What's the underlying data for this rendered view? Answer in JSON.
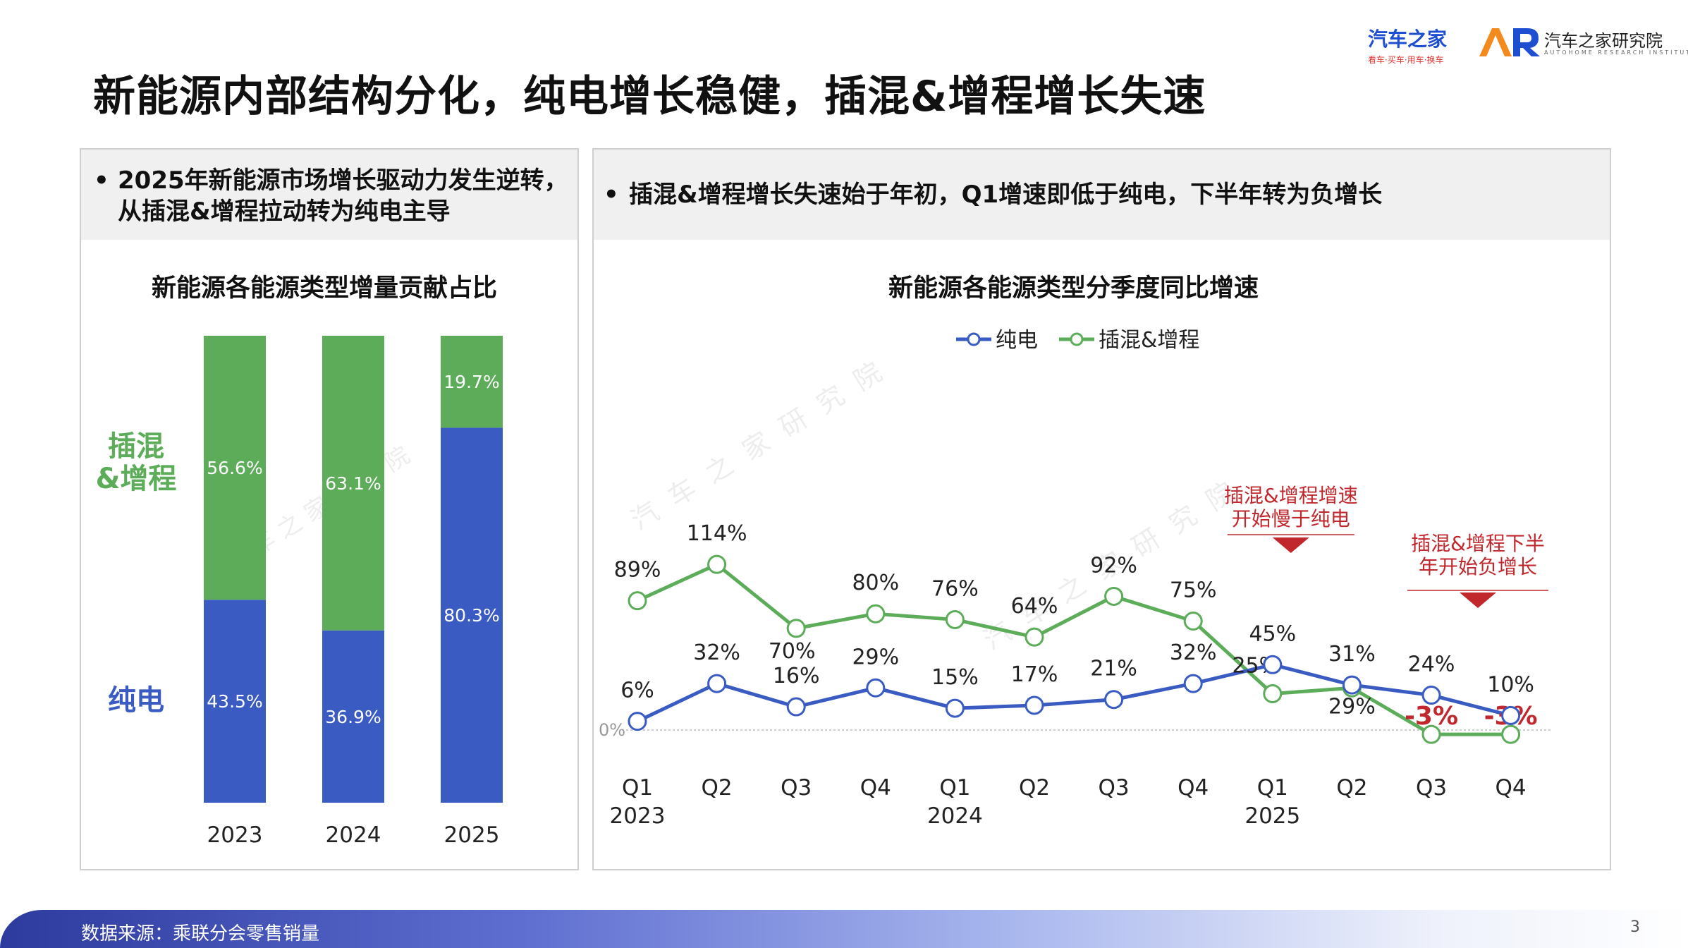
{
  "title": "新能源内部结构分化，纯电增长稳健，插混&增程增长失速",
  "logos": {
    "autohome": "汽车之家",
    "autohome_sub": "看车·买车·用车·换车",
    "institute": "汽车之家研究院",
    "institute_sub": "AUTOHOME RESEARCH INSTITUTE"
  },
  "watermark": "汽 车 之 家 研 究 院",
  "left_panel": {
    "bullet": "•",
    "bullet_line1": "2025年新能源市场增长驱动力发生逆转，",
    "bullet_line2": "从插混&增程拉动转为纯电主导"
  },
  "right_panel": {
    "bullet": "•",
    "bullet_text": "插混&增程增长失速始于年初，Q1增速即低于纯电，下半年转为负增长"
  },
  "colors": {
    "bev": "#3a5bc2",
    "phev": "#5cac5a",
    "annotation": "#c0282e",
    "marker_fill": "#ffffff",
    "zero_line": "#bbbbbb"
  },
  "chart_data": [
    {
      "type": "bar",
      "stacked": true,
      "title": "新能源各能源类型增量贡献占比",
      "categories": [
        "2023",
        "2024",
        "2025"
      ],
      "series": [
        {
          "name": "纯电",
          "values": [
            43.5,
            36.9,
            80.3
          ],
          "labels": [
            "43.5%",
            "36.9%",
            "80.3%"
          ]
        },
        {
          "name": "插混&增程",
          "values": [
            56.6,
            63.1,
            19.7
          ],
          "labels": [
            "56.6%",
            "63.1%",
            "19.7%"
          ]
        }
      ],
      "side_labels": {
        "phev_line1": "插混",
        "phev_line2": "&增程",
        "bev": "纯电"
      },
      "ylim": [
        0,
        100
      ]
    },
    {
      "type": "line",
      "title": "新能源各能源类型分季度同比增速",
      "categories": [
        "Q1",
        "Q2",
        "Q3",
        "Q4",
        "Q1",
        "Q2",
        "Q3",
        "Q4",
        "Q1",
        "Q2",
        "Q3",
        "Q4"
      ],
      "year_labels": [
        "2023",
        "",
        "",
        "",
        "2024",
        "",
        "",
        "",
        "2025",
        "",
        "",
        ""
      ],
      "series": [
        {
          "name": "纯电",
          "values": [
            6,
            32,
            16,
            29,
            15,
            17,
            21,
            32,
            45,
            31,
            24,
            10
          ],
          "labels": [
            "6%",
            "32%",
            "16%",
            "29%",
            "15%",
            "17%",
            "21%",
            "32%",
            "45%",
            "31%",
            "24%",
            "10%"
          ]
        },
        {
          "name": "插混&增程",
          "values": [
            89,
            114,
            70,
            80,
            76,
            64,
            92,
            75,
            25,
            29,
            -3,
            -3
          ],
          "labels": [
            "89%",
            "114%",
            "70%",
            "80%",
            "76%",
            "64%",
            "92%",
            "75%",
            "25%",
            "29%",
            "-3%",
            "-3%"
          ]
        }
      ],
      "zero_label": "0%",
      "legend": [
        "纯电",
        "插混&增程"
      ],
      "legend_position": "top-center",
      "ylim": [
        -10,
        125
      ],
      "annotations": [
        {
          "line1": "插混&增程增速",
          "line2": "开始慢于纯电",
          "at_index": 8
        },
        {
          "line1": "插混&增程下半",
          "line2": "年开始负增长",
          "at_index": 10
        }
      ]
    }
  ],
  "footer": {
    "source": "数据来源：乘联分会零售销量",
    "page_number": "3"
  }
}
